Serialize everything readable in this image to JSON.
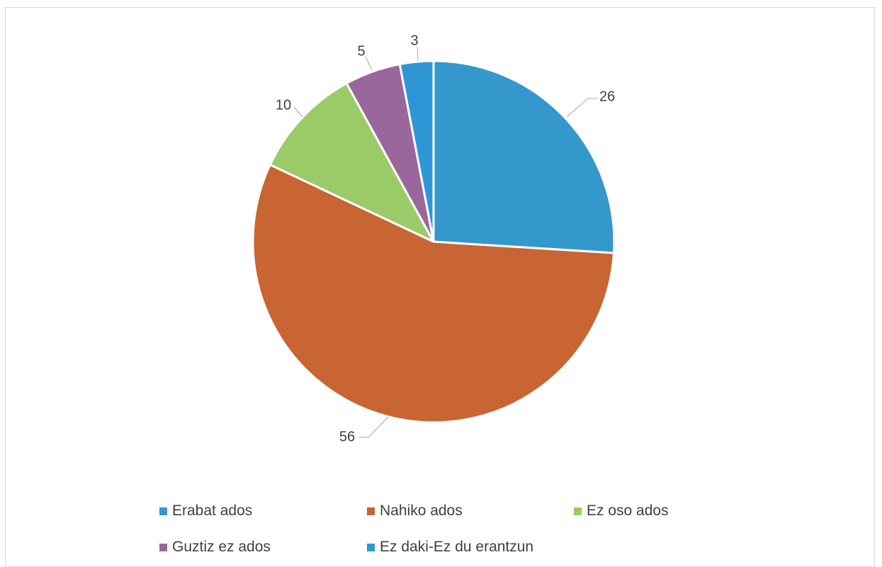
{
  "chart_data": {
    "type": "pie",
    "categories": [
      "Erabat ados",
      "Nahiko ados",
      "Ez oso ados",
      "Guztiz ez ados",
      "Ez daki-Ez du erantzun"
    ],
    "values": [
      26,
      56,
      10,
      5,
      3
    ],
    "data_labels": [
      "26",
      "56",
      "10",
      "5",
      "3"
    ],
    "colors": [
      "#3498cc",
      "#c96433",
      "#9bcb68",
      "#9a679c",
      "#2f96d6"
    ],
    "start_angle_deg": 0,
    "direction": "clockwise",
    "legend_position": "bottom",
    "title": ""
  }
}
